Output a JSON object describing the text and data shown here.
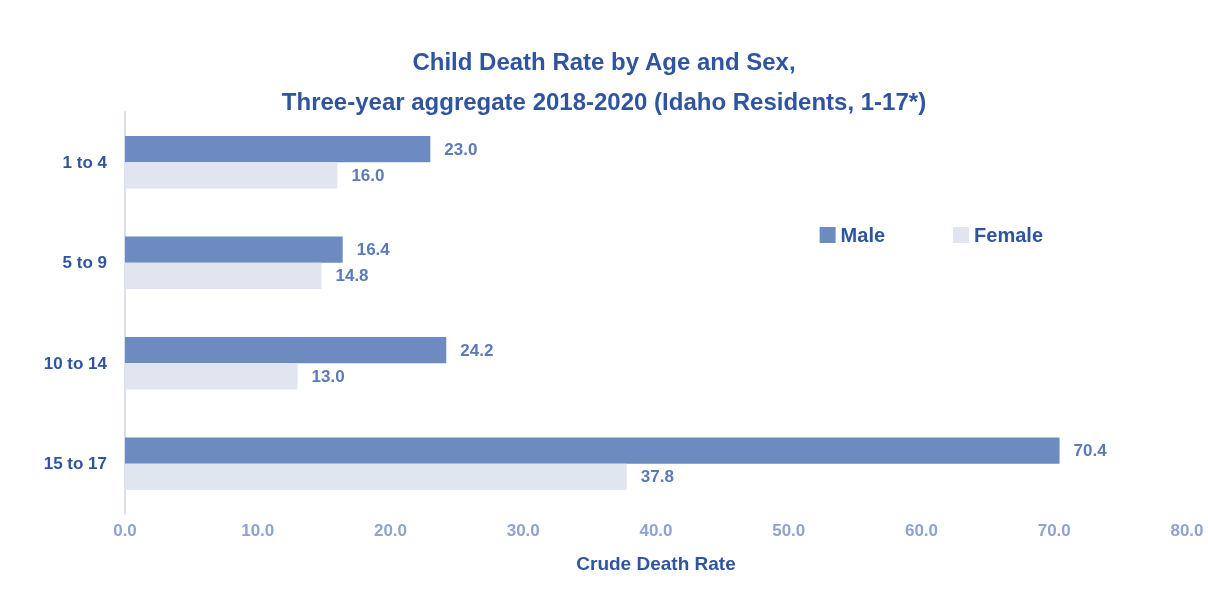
{
  "chart_data": {
    "type": "bar",
    "orientation": "horizontal",
    "title": "Child Death Rate by Age and Sex,\nThree-year aggregate 2018-2020 (Idaho Residents, 1-17*)",
    "xlabel": "Crude Death Rate",
    "categories": [
      "1 to 4",
      "5 to 9",
      "10 to 14",
      "15 to 17"
    ],
    "series": [
      {
        "name": "Male",
        "color": "#6d8bc1",
        "values": [
          23.0,
          16.4,
          24.2,
          70.4
        ],
        "value_labels": [
          "23.0",
          "16.4",
          "24.2",
          "70.4"
        ]
      },
      {
        "name": "Female",
        "color": "#e0e5f0",
        "values": [
          16.0,
          14.8,
          13.0,
          37.8
        ],
        "value_labels": [
          "16.0",
          "14.8",
          "13.0",
          "37.8"
        ]
      }
    ],
    "xlim": [
      0,
      80
    ],
    "xticks": [
      {
        "value": 0,
        "label": "0.0"
      },
      {
        "value": 10,
        "label": "10.0"
      },
      {
        "value": 20,
        "label": "20.0"
      },
      {
        "value": 30,
        "label": "30.0"
      },
      {
        "value": 40,
        "label": "40.0"
      },
      {
        "value": 50,
        "label": "50.0"
      },
      {
        "value": 60,
        "label": "60.0"
      },
      {
        "value": 70,
        "label": "70.0"
      },
      {
        "value": 80,
        "label": "80.0"
      }
    ],
    "grid": false,
    "legend": "top right"
  }
}
